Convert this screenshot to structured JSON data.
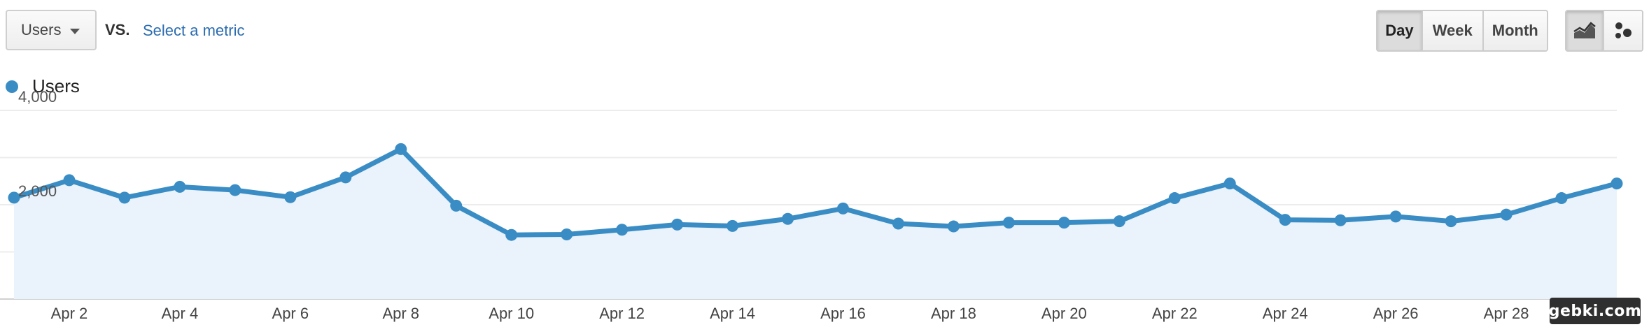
{
  "controls": {
    "metric_select_value": "Users",
    "vs_label": "VS.",
    "select_metric_link": "Select a metric",
    "period_buttons": [
      "Day",
      "Week",
      "Month"
    ],
    "active_period": "Day",
    "chart_type_buttons": [
      {
        "icon": "line-chart-icon",
        "active": true
      },
      {
        "icon": "motion-chart-icon",
        "active": false
      }
    ]
  },
  "legend": {
    "label": "Users",
    "color": "#3a8dc4"
  },
  "watermark": "gebki.com",
  "chart_data": {
    "type": "area",
    "series": [
      {
        "name": "Users",
        "color": "#3a8dc4",
        "fill": "#eaf2fb",
        "values": [
          2150,
          2520,
          2150,
          2380,
          2310,
          2160,
          2580,
          3180,
          1980,
          1360,
          1370,
          1470,
          1580,
          1550,
          1700,
          1920,
          1600,
          1540,
          1620,
          1620,
          1650,
          2140,
          2450,
          1680,
          1670,
          1750,
          1650,
          1790,
          2140,
          2450
        ]
      }
    ],
    "x": [
      "Apr 1",
      "Apr 2",
      "Apr 3",
      "Apr 4",
      "Apr 5",
      "Apr 6",
      "Apr 7",
      "Apr 8",
      "Apr 9",
      "Apr 10",
      "Apr 11",
      "Apr 12",
      "Apr 13",
      "Apr 14",
      "Apr 15",
      "Apr 16",
      "Apr 17",
      "Apr 18",
      "Apr 19",
      "Apr 20",
      "Apr 21",
      "Apr 22",
      "Apr 23",
      "Apr 24",
      "Apr 25",
      "Apr 26",
      "Apr 27",
      "Apr 28",
      "Apr 29",
      "Apr 30"
    ],
    "x_tick_labels": [
      "Apr 2",
      "Apr 4",
      "Apr 6",
      "Apr 8",
      "Apr 10",
      "Apr 12",
      "Apr 14",
      "Apr 16",
      "Apr 18",
      "Apr 20",
      "Apr 22",
      "Apr 24",
      "Apr 26",
      "Apr 28"
    ],
    "y_tick_labels": [
      "4,000",
      "2,000"
    ],
    "y_ticks": [
      4000,
      2000
    ],
    "ylim": [
      0,
      4000
    ],
    "grid": true,
    "legend_position": "top-left"
  }
}
